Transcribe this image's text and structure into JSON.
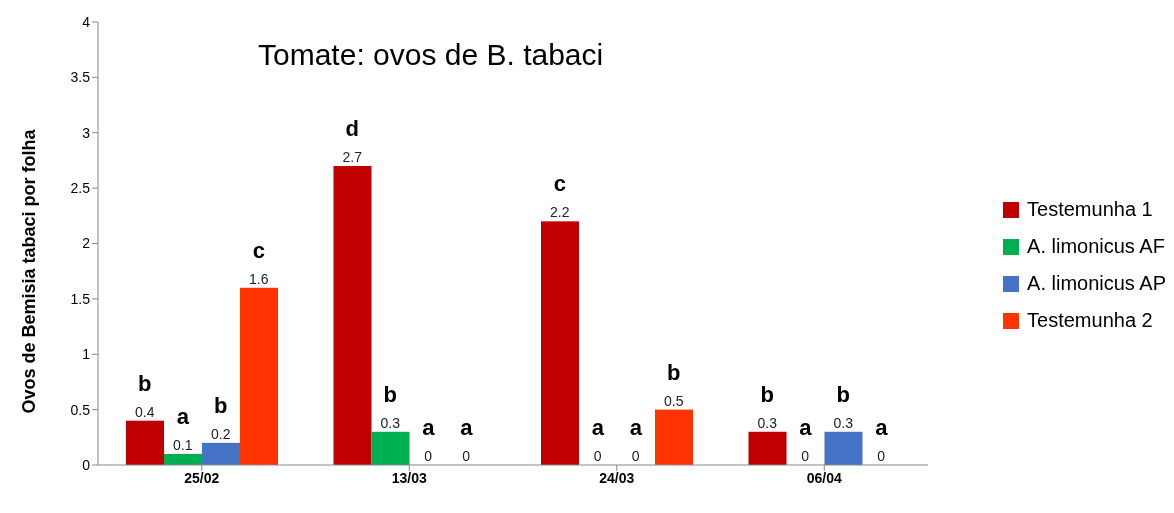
{
  "chart_data": {
    "type": "bar",
    "title": "Tomate: ovos de B. tabaci",
    "ylabel": "Ovos de Bemisia tabaci por folha",
    "categories": [
      "25/02",
      "13/03",
      "24/03",
      "06/04"
    ],
    "series": [
      {
        "name": "Testemunha 1",
        "color": "#c00000",
        "values": [
          0.4,
          2.7,
          2.2,
          0.3
        ]
      },
      {
        "name": "A. limonicus AF",
        "color": "#00b050",
        "values": [
          0.1,
          0.3,
          0,
          0
        ]
      },
      {
        "name": "A. limonicus AP",
        "color": "#4472c4",
        "values": [
          0.2,
          0,
          0,
          0.3
        ]
      },
      {
        "name": "Testemunha 2",
        "color": "#ff3300",
        "values": [
          1.6,
          0,
          0.5,
          0
        ]
      }
    ],
    "ylim": [
      0,
      4
    ],
    "yticks": [
      0,
      0.5,
      1,
      1.5,
      2,
      2.5,
      3,
      3.5,
      4
    ],
    "grid": false,
    "legend": "right",
    "data_labels": true,
    "annotations": [
      "b",
      "a",
      "b",
      "c",
      "d",
      "b",
      "a",
      "a",
      "c",
      "a",
      "a",
      "b",
      "b",
      "a",
      "b",
      "a"
    ]
  }
}
